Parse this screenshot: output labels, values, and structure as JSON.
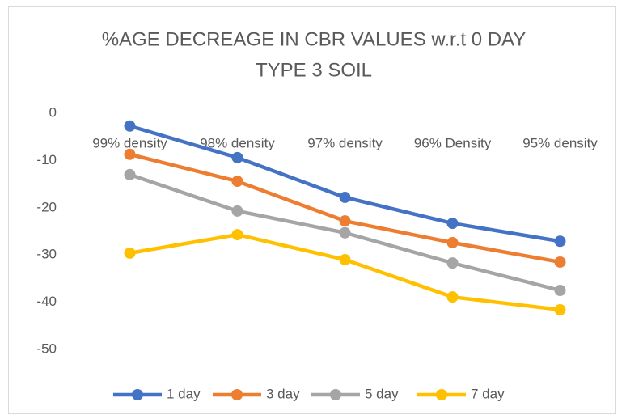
{
  "chart_data": {
    "type": "line",
    "title": [
      "%AGE DECREAGE IN CBR VALUES w.r.t 0 DAY",
      "TYPE 3 SOIL"
    ],
    "categories": [
      "99% density",
      "98% density",
      "97% density",
      "96% Density",
      "95% density"
    ],
    "series": [
      {
        "name": "1 day",
        "color": "#4472c4",
        "values": [
          -2.7,
          -9.4,
          -17.8,
          -23.3,
          -27.1
        ]
      },
      {
        "name": "3 day",
        "color": "#ed7d31",
        "values": [
          -8.7,
          -14.4,
          -22.8,
          -27.4,
          -31.5
        ]
      },
      {
        "name": "5 day",
        "color": "#a5a5a5",
        "values": [
          -13.0,
          -20.7,
          -25.3,
          -31.7,
          -37.5
        ]
      },
      {
        "name": "7 day",
        "color": "#ffc000",
        "values": [
          -29.6,
          -25.7,
          -31.0,
          -38.9,
          -41.6
        ]
      }
    ],
    "ylim": [
      -50,
      0
    ],
    "yticks": [
      0,
      -10,
      -20,
      -30,
      -40,
      -50
    ],
    "grid": false,
    "legend": "bottom"
  }
}
